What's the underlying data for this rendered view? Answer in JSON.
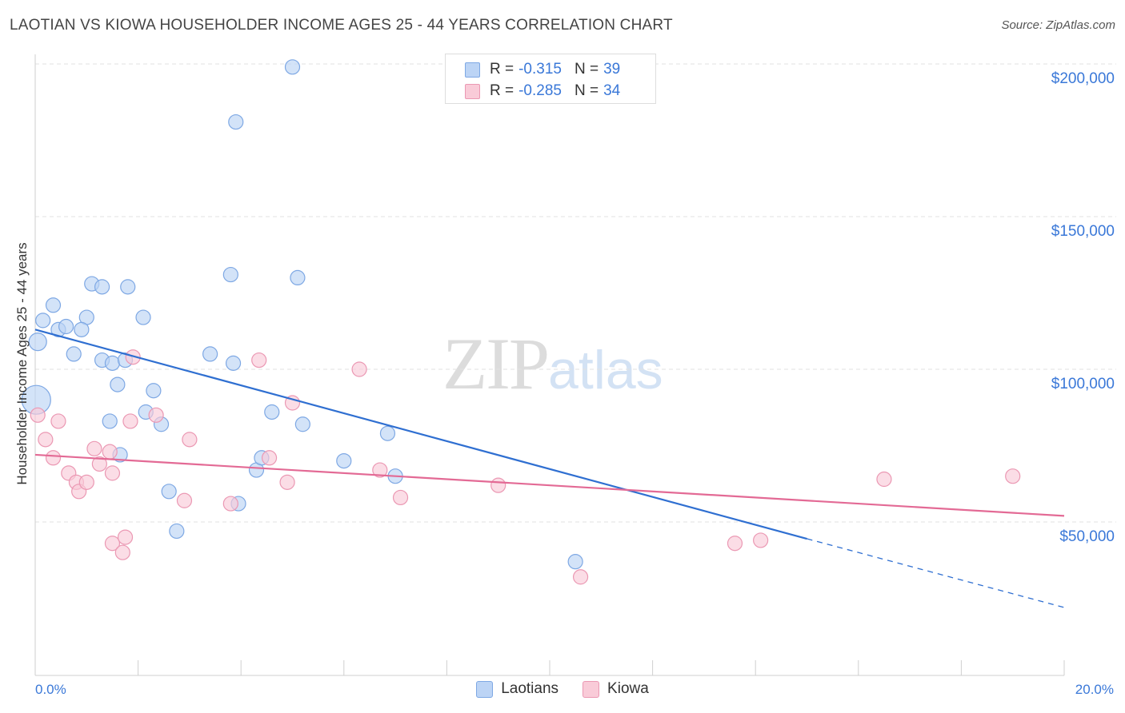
{
  "header": {
    "title": "LAOTIAN VS KIOWA HOUSEHOLDER INCOME AGES 25 - 44 YEARS CORRELATION CHART",
    "source": "Source: ZipAtlas.com"
  },
  "watermark": {
    "zip": "ZIP",
    "atlas": "atlas"
  },
  "legend": {
    "r_label": "R =",
    "n_label": "N =",
    "rows": [
      {
        "r": "-0.315",
        "n": "39"
      },
      {
        "r": "-0.285",
        "n": "34"
      }
    ]
  },
  "colors": {
    "laotians_fill": "#bcd4f5",
    "laotians_stroke": "#7ea8e4",
    "laotians_line": "#2f6fd1",
    "kiowa_fill": "#f9cbd8",
    "kiowa_stroke": "#eb98b3",
    "kiowa_line": "#e36a95",
    "tick_label": "#3a78d8"
  },
  "chart_data": {
    "type": "scatter",
    "title": "LAOTIAN VS KIOWA HOUSEHOLDER INCOME AGES 25 - 44 YEARS CORRELATION CHART",
    "xlabel": "",
    "ylabel": "Householder Income Ages 25 - 44 years",
    "xlim": [
      0,
      20
    ],
    "ylim": [
      0,
      205000
    ],
    "x_tick_labels": [
      "0.0%",
      "20.0%"
    ],
    "y_ticks": [
      50000,
      100000,
      150000,
      200000
    ],
    "y_tick_labels": [
      "$50,000",
      "$100,000",
      "$150,000",
      "$200,000"
    ],
    "grid": true,
    "legend_position": "bottom",
    "series": [
      {
        "name": "Laotians",
        "x": [
          5.0,
          3.9,
          0.05,
          0.15,
          0.35,
          0.45,
          0.6,
          0.75,
          1.1,
          1.0,
          0.9,
          1.3,
          1.3,
          1.45,
          1.5,
          1.6,
          1.65,
          1.75,
          1.8,
          2.1,
          2.15,
          2.3,
          2.45,
          2.6,
          2.75,
          3.4,
          3.8,
          3.85,
          3.95,
          4.3,
          4.4,
          4.6,
          5.1,
          5.2,
          6.0,
          6.85,
          7.0,
          10.5,
          0.02
        ],
        "y": [
          199000,
          181000,
          109000,
          116000,
          121000,
          113000,
          114000,
          105000,
          128000,
          117000,
          113000,
          127000,
          103000,
          83000,
          102000,
          95000,
          72000,
          103000,
          127000,
          117000,
          86000,
          93000,
          82000,
          60000,
          47000,
          105000,
          131000,
          102000,
          56000,
          67000,
          71000,
          86000,
          130000,
          82000,
          70000,
          79000,
          65000,
          37000,
          90000
        ],
        "size": [
          9,
          9,
          11,
          9,
          9,
          9,
          9,
          9,
          9,
          9,
          9,
          9,
          9,
          9,
          9,
          9,
          9,
          9,
          9,
          9,
          9,
          9,
          9,
          9,
          9,
          9,
          9,
          9,
          9,
          9,
          9,
          9,
          9,
          9,
          9,
          9,
          9,
          9,
          18
        ]
      },
      {
        "name": "Kiowa",
        "x": [
          0.05,
          0.2,
          0.45,
          0.35,
          0.65,
          0.8,
          0.85,
          1.0,
          1.15,
          1.25,
          1.45,
          1.5,
          1.5,
          1.7,
          1.75,
          1.85,
          2.35,
          2.9,
          3.0,
          3.8,
          4.35,
          4.55,
          4.9,
          5.0,
          6.3,
          6.7,
          7.1,
          9.0,
          10.6,
          13.6,
          14.1,
          16.5,
          19.0,
          1.9
        ],
        "y": [
          85000,
          77000,
          83000,
          71000,
          66000,
          63000,
          60000,
          63000,
          74000,
          69000,
          73000,
          66000,
          43000,
          40000,
          45000,
          83000,
          85000,
          57000,
          77000,
          56000,
          103000,
          71000,
          63000,
          89000,
          100000,
          67000,
          58000,
          62000,
          32000,
          43000,
          44000,
          64000,
          65000,
          104000
        ],
        "size": [
          9,
          9,
          9,
          9,
          9,
          9,
          9,
          9,
          9,
          9,
          9,
          9,
          9,
          9,
          9,
          9,
          9,
          9,
          9,
          9,
          9,
          9,
          9,
          9,
          9,
          9,
          9,
          9,
          9,
          9,
          9,
          9,
          9,
          9
        ]
      }
    ],
    "trend_lines": [
      {
        "name": "Laotians",
        "x_start": 0,
        "y_start": 113000,
        "x_end": 15,
        "y_end": 44500,
        "dashed_to_x": 20,
        "dashed_to_y": 22000
      },
      {
        "name": "Kiowa",
        "x_start": 0,
        "y_start": 72000,
        "x_end": 20,
        "y_end": 52000
      }
    ]
  }
}
